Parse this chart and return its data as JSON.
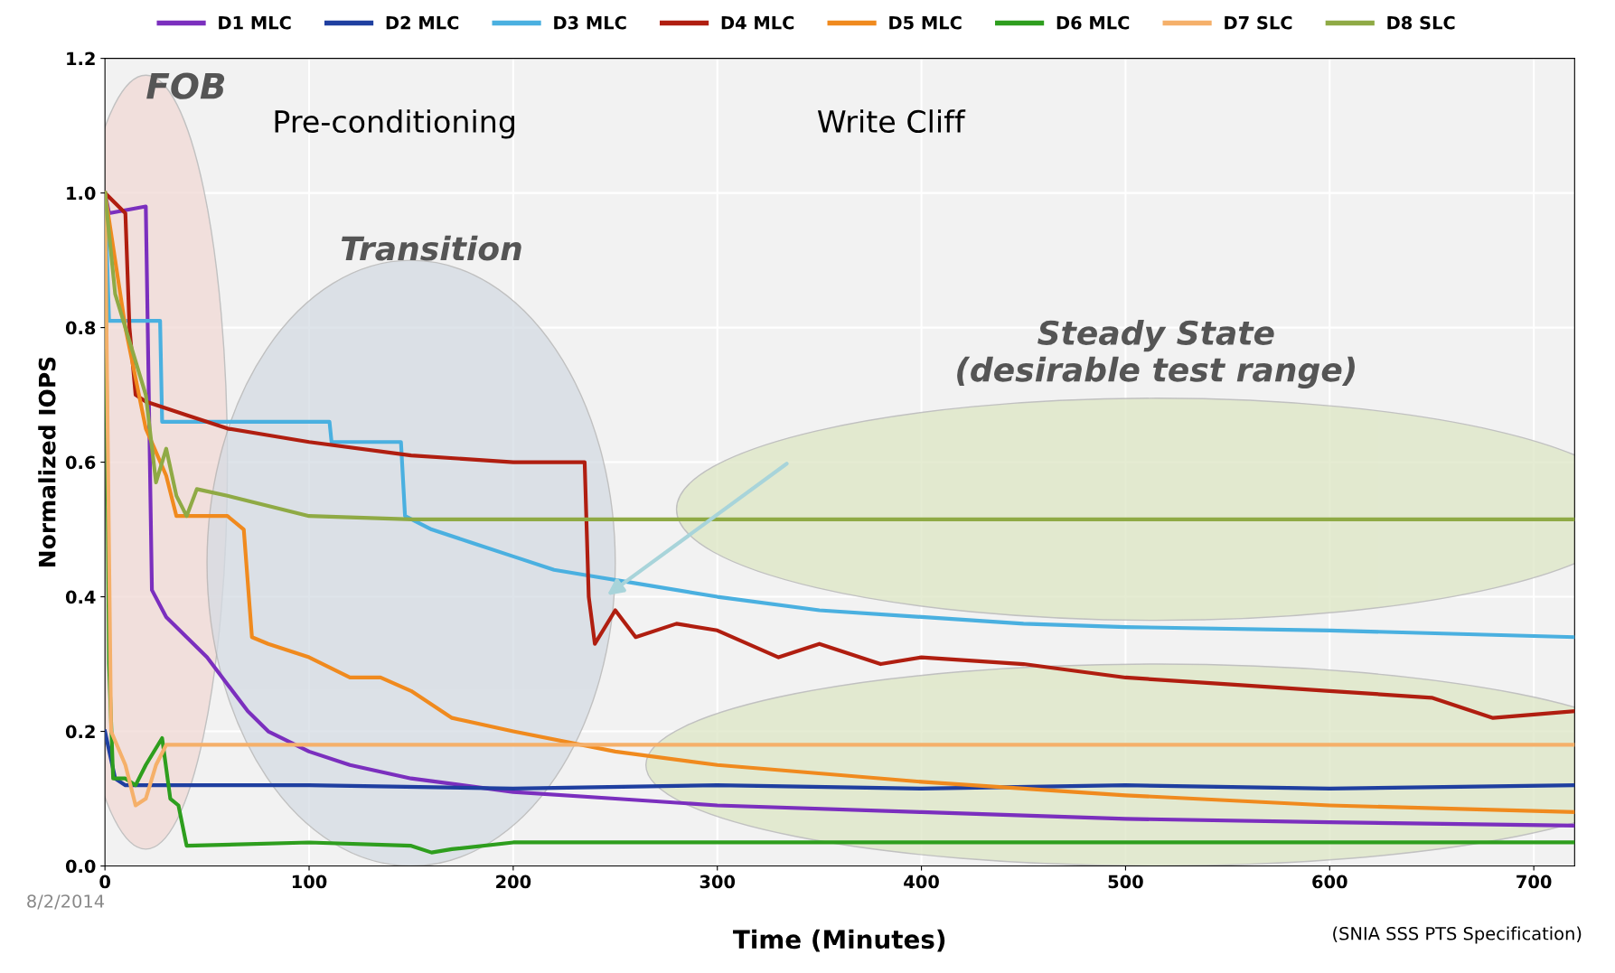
{
  "chart_data": {
    "type": "line",
    "xlabel": "Time (Minutes)",
    "ylabel": "Normalized IOPS",
    "xlim": [
      0,
      720
    ],
    "ylim": [
      0,
      1.2
    ],
    "xticks": [
      0,
      100,
      200,
      300,
      400,
      500,
      600,
      700
    ],
    "yticks": [
      {
        "value": 0,
        "label": "0.0"
      },
      {
        "value": 0.2,
        "label": "0.2"
      },
      {
        "value": 0.4,
        "label": "0.4"
      },
      {
        "value": 0.6,
        "label": "0.6"
      },
      {
        "value": 0.8,
        "label": "0.8"
      },
      {
        "value": 1.0,
        "label": "1.0"
      },
      {
        "value": 1.2,
        "label": "1.2"
      }
    ],
    "grid": true,
    "legend": "top",
    "marker": "none",
    "line_style": "solid",
    "series": [
      {
        "name": "D1 MLC",
        "color": "#7b2fbe",
        "x": [
          0,
          2,
          20,
          22,
          23,
          30,
          40,
          50,
          60,
          70,
          80,
          100,
          120,
          150,
          200,
          250,
          300,
          400,
          500,
          600,
          720
        ],
        "values": [
          1.0,
          0.97,
          0.98,
          0.6,
          0.41,
          0.37,
          0.34,
          0.31,
          0.27,
          0.23,
          0.2,
          0.17,
          0.15,
          0.13,
          0.11,
          0.1,
          0.09,
          0.08,
          0.07,
          0.065,
          0.06
        ]
      },
      {
        "name": "D2 MLC",
        "color": "#1f3fa0",
        "x": [
          0,
          5,
          10,
          100,
          200,
          300,
          400,
          500,
          600,
          720
        ],
        "values": [
          0.2,
          0.13,
          0.12,
          0.12,
          0.115,
          0.12,
          0.115,
          0.12,
          0.115,
          0.12
        ]
      },
      {
        "name": "D3 MLC",
        "color": "#4ab0e0",
        "x": [
          0,
          2,
          27,
          28,
          110,
          111,
          145,
          147,
          160,
          180,
          200,
          220,
          240,
          260,
          300,
          350,
          400,
          450,
          500,
          600,
          720
        ],
        "values": [
          1.0,
          0.81,
          0.81,
          0.66,
          0.66,
          0.63,
          0.63,
          0.52,
          0.5,
          0.48,
          0.46,
          0.44,
          0.43,
          0.42,
          0.4,
          0.38,
          0.37,
          0.36,
          0.355,
          0.35,
          0.34
        ]
      },
      {
        "name": "D4 MLC",
        "color": "#b01e10",
        "x": [
          0,
          10,
          12,
          15,
          20,
          40,
          60,
          80,
          100,
          150,
          200,
          235,
          237,
          240,
          250,
          260,
          280,
          300,
          330,
          350,
          380,
          400,
          450,
          500,
          550,
          600,
          650,
          680,
          720
        ],
        "values": [
          1.0,
          0.97,
          0.8,
          0.7,
          0.69,
          0.67,
          0.65,
          0.64,
          0.63,
          0.61,
          0.6,
          0.6,
          0.4,
          0.33,
          0.38,
          0.34,
          0.36,
          0.35,
          0.31,
          0.33,
          0.3,
          0.31,
          0.3,
          0.28,
          0.27,
          0.26,
          0.25,
          0.22,
          0.23
        ]
      },
      {
        "name": "D5 MLC",
        "color": "#f08a1e",
        "x": [
          0,
          10,
          20,
          30,
          35,
          60,
          68,
          72,
          80,
          100,
          120,
          135,
          150,
          170,
          200,
          250,
          300,
          400,
          500,
          600,
          720
        ],
        "values": [
          1.0,
          0.8,
          0.65,
          0.58,
          0.52,
          0.52,
          0.5,
          0.34,
          0.33,
          0.31,
          0.28,
          0.28,
          0.26,
          0.22,
          0.2,
          0.17,
          0.15,
          0.125,
          0.105,
          0.09,
          0.08
        ]
      },
      {
        "name": "D6 MLC",
        "color": "#2e9e1e",
        "x": [
          0,
          2,
          4,
          10,
          15,
          20,
          28,
          32,
          36,
          40,
          100,
          150,
          160,
          170,
          200,
          300,
          720
        ],
        "values": [
          1.0,
          0.3,
          0.13,
          0.13,
          0.12,
          0.15,
          0.19,
          0.1,
          0.09,
          0.03,
          0.035,
          0.03,
          0.02,
          0.025,
          0.035,
          0.035,
          0.035
        ]
      },
      {
        "name": "D7 SLC",
        "color": "#f5b06a",
        "x": [
          0,
          3,
          10,
          15,
          20,
          25,
          30,
          200,
          400,
          600,
          720
        ],
        "values": [
          1.0,
          0.2,
          0.15,
          0.09,
          0.1,
          0.15,
          0.18,
          0.18,
          0.18,
          0.18,
          0.18
        ]
      },
      {
        "name": "D8 SLC",
        "color": "#8faa45",
        "x": [
          0,
          5,
          15,
          20,
          25,
          30,
          35,
          40,
          45,
          60,
          100,
          150,
          200,
          720
        ],
        "values": [
          1.0,
          0.85,
          0.75,
          0.7,
          0.57,
          0.62,
          0.55,
          0.52,
          0.56,
          0.55,
          0.52,
          0.515,
          0.515,
          0.515
        ]
      }
    ],
    "annotations": [
      "FOB",
      "Pre-conditioning",
      "Transition",
      "Write Cliff",
      "Steady State\n(desirable test range)",
      "8/2/2014",
      "(SNIA SSS PTS Specification)"
    ]
  }
}
